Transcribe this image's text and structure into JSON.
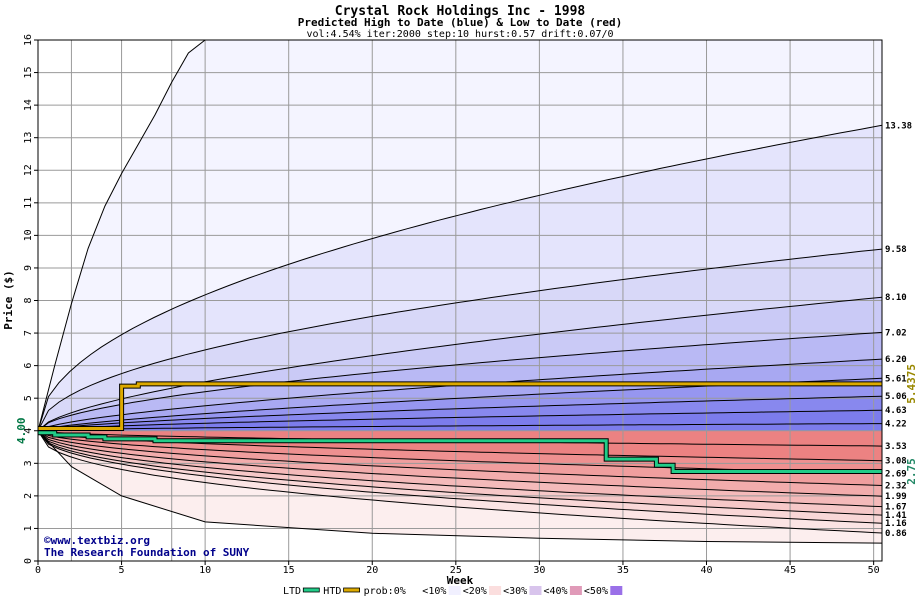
{
  "chart_data": {
    "type": "area",
    "title": "Crystal Rock Holdings Inc - 1998",
    "subtitle": "Predicted High to Date (blue) &  Low to Date (red)",
    "params": "vol:4.54% iter:2000 step:10 hurst:0.57 drift:0.07/0",
    "xlabel": "Week",
    "ylabel": "Price ($)",
    "xlim": [
      0,
      50.5
    ],
    "ylim": [
      0,
      16
    ],
    "x_ticks": [
      0,
      5,
      10,
      15,
      20,
      25,
      30,
      35,
      40,
      45,
      50
    ],
    "y_ticks": [
      0,
      1,
      2,
      3,
      4,
      5,
      6,
      7,
      8,
      9,
      10,
      11,
      12,
      13,
      14,
      15,
      16
    ],
    "grid": true,
    "start_price": 4.0,
    "start_price_label": "4.00",
    "x_grid": [
      0,
      2,
      5,
      8,
      10,
      15,
      20,
      25,
      30,
      35,
      40,
      45,
      50
    ],
    "high_quantiles": [
      {
        "end": 13.38,
        "end_label": "13.38",
        "k": 0.94,
        "p": 0.5
      },
      {
        "end": 9.58,
        "end_label": "9.58",
        "k": 0.53,
        "p": 0.5
      },
      {
        "end": 8.1,
        "end_label": "8.10",
        "k": 0.3,
        "p": 0.62
      },
      {
        "end": 7.02,
        "end_label": "7.02",
        "k": 0.27,
        "p": 0.57
      },
      {
        "end": 6.2,
        "end_label": "6.20",
        "k": 0.18,
        "p": 0.65
      },
      {
        "end": 5.61,
        "end_label": "5.61",
        "k": 0.13,
        "p": 0.69
      },
      {
        "end": 5.06,
        "end_label": "5.06",
        "k": 0.1,
        "p": 0.64
      },
      {
        "end": 4.63,
        "end_label": "4.63",
        "k": 0.07,
        "p": 0.62
      },
      {
        "end": 4.22,
        "end_label": "4.22",
        "k": 0.03,
        "p": 0.56
      }
    ],
    "low_quantiles": [
      {
        "end": 3.53,
        "end_label": "3.53",
        "k": 0.08,
        "p": 0.55
      },
      {
        "end": 3.08,
        "end_label": "3.08",
        "k": 0.13,
        "p": 0.52
      },
      {
        "end": 2.69,
        "end_label": "2.69",
        "k": 0.2,
        "p": 0.5
      },
      {
        "end": 2.32,
        "end_label": "2.32",
        "k": 0.26,
        "p": 0.48
      },
      {
        "end": 1.99,
        "end_label": "1.99",
        "k": 0.32,
        "p": 0.46
      },
      {
        "end": 1.67,
        "end_label": "1.67",
        "k": 0.38,
        "p": 0.45
      },
      {
        "end": 1.41,
        "end_label": "1.41",
        "k": 0.43,
        "p": 0.44
      },
      {
        "end": 1.16,
        "end_label": "1.16",
        "k": 0.48,
        "p": 0.44
      },
      {
        "end": 0.86,
        "end_label": "0.86",
        "k": 0.56,
        "p": 0.42
      }
    ],
    "outer_high_curve": {
      "x": [
        0,
        1,
        2,
        3,
        4,
        5,
        6,
        7,
        8,
        9,
        10
      ],
      "y": [
        4.0,
        6.0,
        7.9,
        9.6,
        10.9,
        11.9,
        12.8,
        13.7,
        14.7,
        15.6,
        16.0
      ]
    },
    "outer_low_curve": {
      "x": [
        0,
        2,
        5,
        10,
        20,
        30,
        40,
        50.5
      ],
      "y": [
        4.0,
        2.9,
        2.0,
        1.2,
        0.85,
        0.7,
        0.6,
        0.55
      ]
    },
    "htd": {
      "name": "HTD",
      "color": "#ddaa00",
      "x": [
        0,
        5,
        5,
        6,
        6,
        50.5
      ],
      "y": [
        4.07,
        4.07,
        5.37,
        5.37,
        5.44,
        5.44
      ],
      "end_label": "5.4375"
    },
    "ltd": {
      "name": "LTD",
      "color": "#22cc88",
      "x": [
        0,
        1,
        1,
        3,
        3,
        4,
        4,
        7,
        7,
        34,
        34,
        37,
        37,
        38,
        38,
        50.5
      ],
      "y": [
        3.94,
        3.94,
        3.87,
        3.87,
        3.81,
        3.81,
        3.75,
        3.75,
        3.69,
        3.69,
        3.13,
        3.13,
        2.94,
        2.94,
        2.75,
        2.75
      ],
      "end_label": "2.75"
    },
    "band_colors": {
      "blue": [
        "#f4f4ff",
        "#e4e4fc",
        "#d8d8f8",
        "#cacaf6",
        "#b9b9f4",
        "#a8a8f2",
        "#9696f0",
        "#8888ee",
        "#7c7cec"
      ],
      "red": [
        "#fceeee",
        "#fbe4e4",
        "#f9d7d7",
        "#f6c8c8",
        "#f4baba",
        "#f2acac",
        "#f09e9e",
        "#ee9090",
        "#ec8282"
      ]
    }
  },
  "legend": {
    "items": [
      {
        "label": "LTD",
        "color": "#22cc88",
        "kind": "line"
      },
      {
        "label": "HTD",
        "color": "#ddaa00",
        "kind": "line"
      },
      {
        "label": "prob:0%",
        "color": "#ffffff",
        "kind": "box"
      },
      {
        "label": "<10%",
        "color": "#f1f0ff",
        "kind": "box"
      },
      {
        "label": "<20%",
        "color": "#fbdede",
        "kind": "box"
      },
      {
        "label": "<30%",
        "color": "#d8c4ec",
        "kind": "box"
      },
      {
        "label": "<40%",
        "color": "#e09ab8",
        "kind": "box"
      },
      {
        "label": "<50%",
        "color": "#9a70e8",
        "kind": "box"
      }
    ]
  },
  "credits": {
    "line1": "©www.textbiz.org",
    "line2": "The Research Foundation of SUNY"
  }
}
